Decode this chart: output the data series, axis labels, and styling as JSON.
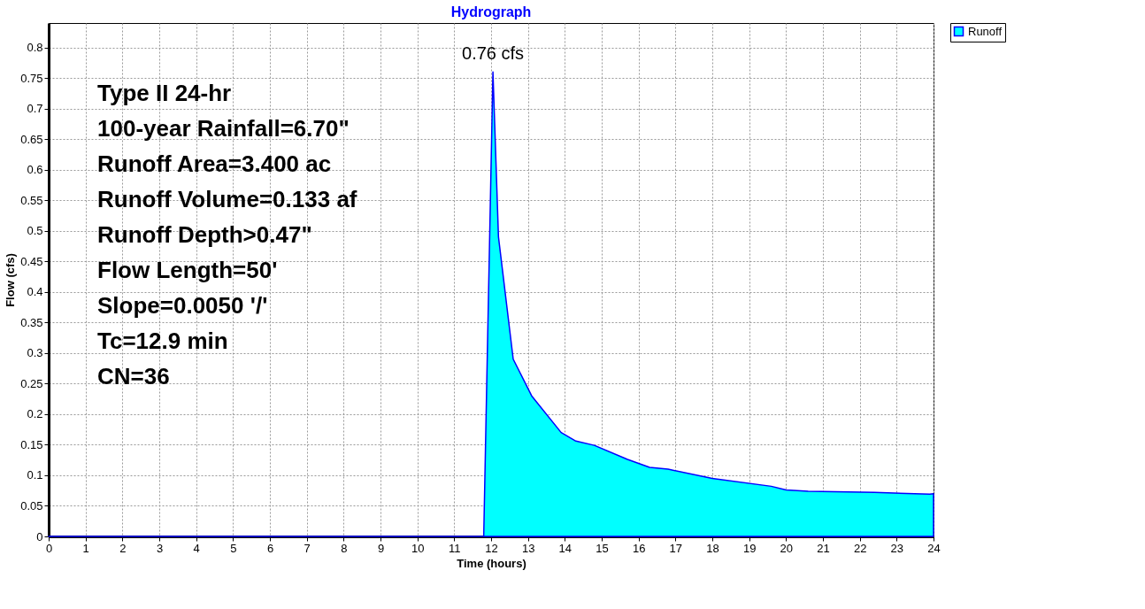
{
  "chart_data": {
    "type": "area",
    "title": "Hydrograph",
    "xlabel": "Time  (hours)",
    "ylabel": "Flow  (cfs)",
    "x": [
      0,
      11.8,
      12.05,
      12.2,
      12.6,
      13.1,
      13.9,
      14.3,
      14.8,
      15.7,
      16.3,
      16.8,
      18,
      19.6,
      20,
      20.6,
      22.4,
      23.9,
      24
    ],
    "series": [
      {
        "name": "Runoff",
        "color": "#00ffff",
        "values": [
          0,
          0,
          0.76,
          0.49,
          0.29,
          0.23,
          0.17,
          0.156,
          0.149,
          0.126,
          0.113,
          0.11,
          0.095,
          0.082,
          0.076,
          0.074,
          0.072,
          0.069,
          0.07
        ]
      }
    ],
    "xlim": [
      0,
      24
    ],
    "xticks": [
      0,
      1,
      2,
      3,
      4,
      5,
      6,
      7,
      8,
      9,
      10,
      11,
      12,
      13,
      14,
      15,
      16,
      17,
      18,
      19,
      20,
      21,
      22,
      23,
      24
    ],
    "ylim": [
      0,
      0.84
    ],
    "yticks": [
      0,
      0.05,
      0.1,
      0.15,
      0.2,
      0.25,
      0.3,
      0.35,
      0.4,
      0.45,
      0.5,
      0.55,
      0.6,
      0.65,
      0.7,
      0.75,
      0.8
    ],
    "grid": true,
    "legend": "top right",
    "annotations": [
      {
        "text": "0.76 cfs",
        "x": 12.05,
        "y": 0.76
      },
      "Type II 24-hr",
      "100-year Rainfall=6.70\"",
      "Runoff Area=3.400 ac",
      "Runoff Volume=0.133 af",
      "Runoff Depth>0.47\"",
      "Flow Length=50'",
      "Slope=0.0050 '/'",
      "Tc=12.9 min",
      "CN=36"
    ]
  }
}
